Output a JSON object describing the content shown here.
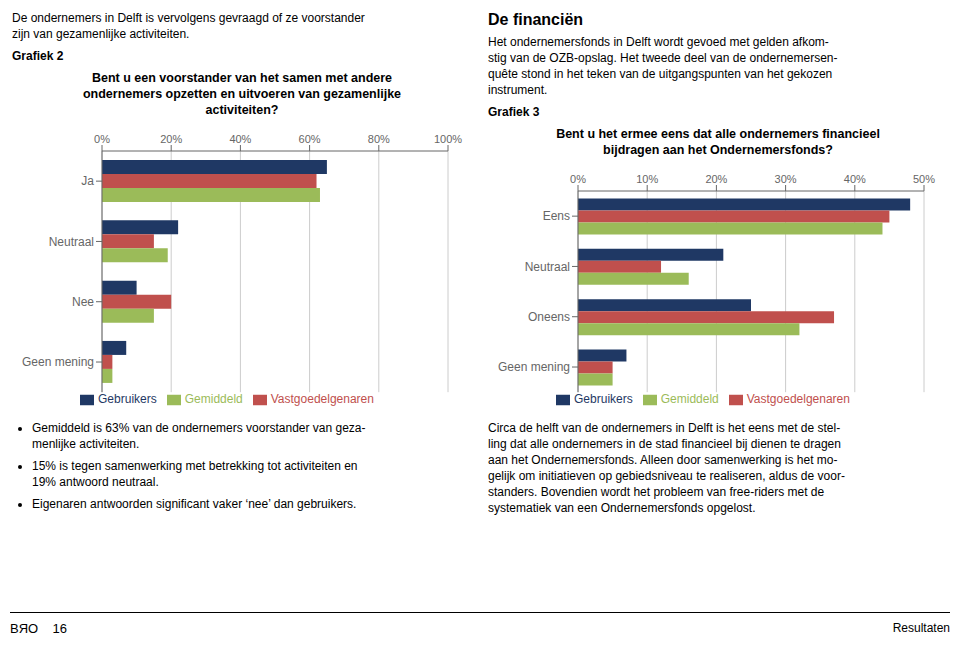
{
  "chart_data": [
    {
      "type": "bar",
      "orientation": "horizontal",
      "title": "Bent u een voorstander van het samen met andere\nondernemers opzetten en uitvoeren van gezamenlijke\nactiviteiten?",
      "subtitle": "Grafiek 2",
      "categories": [
        "Ja",
        "Neutraal",
        "Nee",
        "Geen mening"
      ],
      "series": [
        {
          "name": "Gebruikers",
          "color": "#1F3864",
          "values": [
            65,
            22,
            10,
            7
          ]
        },
        {
          "name": "Vastgoedelgenaren",
          "color": "#C0504D",
          "values": [
            62,
            15,
            20,
            3
          ]
        },
        {
          "name": "Gemiddeld",
          "color": "#9BBB59",
          "values": [
            63,
            19,
            15,
            3
          ]
        }
      ],
      "xlim": [
        0,
        100
      ],
      "xticks": [
        {
          "value": 0,
          "label": "0%"
        },
        {
          "value": 20,
          "label": "20%"
        },
        {
          "value": 40,
          "label": "40%"
        },
        {
          "value": 60,
          "label": "60%"
        },
        {
          "value": 80,
          "label": "80%"
        },
        {
          "value": 100,
          "label": "100%"
        }
      ],
      "grid": true,
      "legend": "bottom",
      "annotations": [
        "De ondernemers in Delft is vervolgens gevraagd of ze voorstander\nzijn van gezamenlijke activiteiten.",
        "Gemiddeld is 63% van de ondernemers voorstander van geza-\nmenlijke activiteiten.",
        "15% is tegen samenwerking met betrekking tot activiteiten en\n19% antwoord neutraal.",
        "Eigenaren antwoorden significant vaker ‘nee’ dan gebruikers."
      ]
    },
    {
      "type": "bar",
      "orientation": "horizontal",
      "title": "Bent u het ermee eens dat alle ondernemers financieel\nbijdragen aan het Ondernemersfonds?",
      "subtitle": "Grafiek 3",
      "categories": [
        "Eens",
        "Neutraal",
        "Oneens",
        "Geen mening"
      ],
      "series": [
        {
          "name": "Gebruikers",
          "color": "#1F3864",
          "values": [
            48,
            21,
            25,
            7
          ]
        },
        {
          "name": "Vastgoedelgenaren",
          "color": "#C0504D",
          "values": [
            45,
            12,
            37,
            5
          ]
        },
        {
          "name": "Gemiddeld",
          "color": "#9BBB59",
          "values": [
            44,
            16,
            32,
            5
          ]
        }
      ],
      "xlim": [
        0,
        50
      ],
      "xticks": [
        {
          "value": 0,
          "label": "0%"
        },
        {
          "value": 10,
          "label": "10%"
        },
        {
          "value": 20,
          "label": "20%"
        },
        {
          "value": 30,
          "label": "30%"
        },
        {
          "value": 40,
          "label": "40%"
        },
        {
          "value": 50,
          "label": "50%"
        }
      ],
      "grid": true,
      "legend": "bottom",
      "annotations": [
        "De financiën",
        "Het ondernemersfonds in Delft wordt gevoed met gelden afkom-\nstig van de OZB-opslag. Het tweede deel van de ondernemersen-\nquête stond in het teken van de uitgangspunten van het gekozen\ninstrument.",
        "Circa de helft van de ondernemers in Delft is het eens met de stel-\nling dat alle ondernemers in de stad financieel bij dienen te dragen\naan het Ondernemersfonds. Alleen door samenwerking is het mo-\ngelijk om initiatieven op gebiedsniveau te realiseren, aldus de voor-\nstanders. Bovendien wordt het probleem van free-riders met de\nsystematiek van een Ondernemersfonds opgelost."
      ]
    }
  ],
  "annotations": [
    "BЯO    16",
    "Resultaten"
  ]
}
